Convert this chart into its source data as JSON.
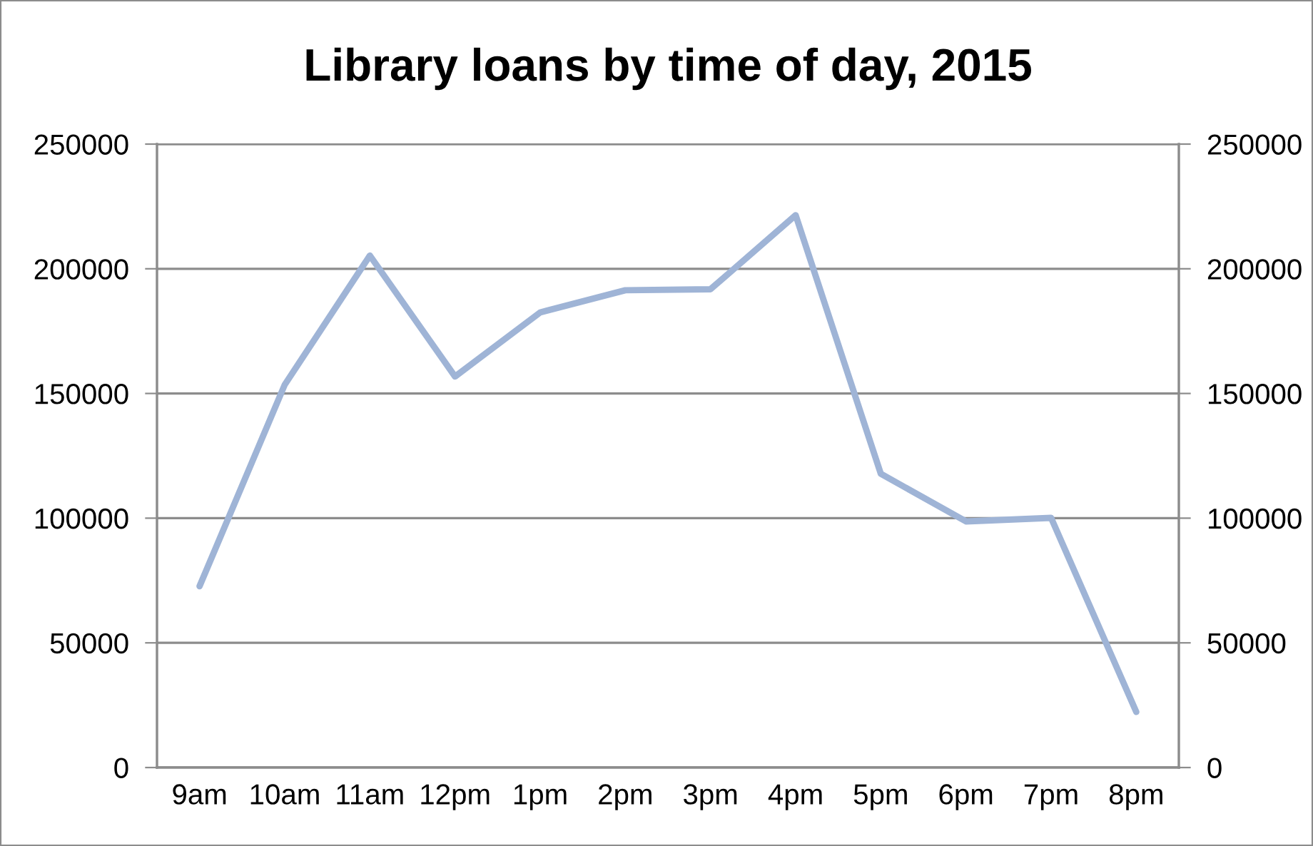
{
  "chart_data": {
    "type": "line",
    "title": "Library loans by time of day, 2015",
    "categories": [
      "9am",
      "10am",
      "11am",
      "12pm",
      "1pm",
      "2pm",
      "3pm",
      "4pm",
      "5pm",
      "6pm",
      "7pm",
      "8pm"
    ],
    "series": [
      {
        "color": "#9fb4d6",
        "values": [
          72700,
          153500,
          205300,
          156800,
          182500,
          191400,
          191800,
          221500,
          117800,
          98700,
          100100,
          22300
        ]
      }
    ],
    "ylim": [
      0,
      250000
    ],
    "yticks": [
      0,
      50000,
      100000,
      150000,
      200000,
      250000
    ],
    "y2lim": [
      0,
      250000
    ],
    "y2ticks": [
      0,
      50000,
      100000,
      150000,
      200000,
      250000
    ],
    "grid": "y",
    "marker": "none",
    "line_style": "solid"
  }
}
